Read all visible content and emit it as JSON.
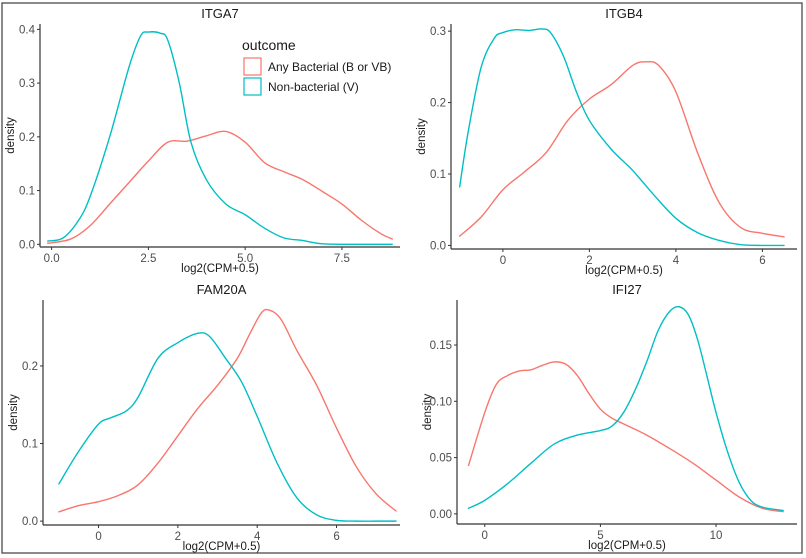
{
  "colors": {
    "bacterial": "#F8766D",
    "nonbacterial": "#00BFC4"
  },
  "legend": {
    "title": "outcome",
    "items": [
      {
        "label": "Any Bacterial (B or VB)",
        "series": "bacterial"
      },
      {
        "label": "Non-bacterial (V)",
        "series": "nonbacterial"
      }
    ]
  },
  "chart_data": [
    {
      "type": "line",
      "title": "ITGA7",
      "xlabel": "log2(CPM+0.5)",
      "ylabel": "density",
      "xlim": [
        -0.3,
        9.0
      ],
      "ylim": [
        -0.005,
        0.41
      ],
      "xticks": [
        0.0,
        2.5,
        5.0,
        7.5
      ],
      "xtick_labels": [
        "0.0",
        "2.5",
        "5.0",
        "7.5"
      ],
      "yticks": [
        0.0,
        0.1,
        0.2,
        0.3,
        0.4
      ],
      "ytick_labels": [
        "0.0",
        "0.1",
        "0.2",
        "0.3",
        "0.4"
      ],
      "grid": false,
      "legend_position": "top-right",
      "series": [
        {
          "name": "Any Bacterial (B or VB)",
          "key": "bacterial",
          "x": [
            -0.1,
            0.5,
            1.0,
            1.5,
            2.0,
            2.5,
            3.0,
            3.5,
            4.0,
            4.5,
            5.0,
            5.5,
            6.0,
            6.5,
            7.0,
            7.5,
            8.0,
            8.5,
            8.8
          ],
          "y": [
            0.002,
            0.01,
            0.035,
            0.075,
            0.115,
            0.155,
            0.19,
            0.192,
            0.202,
            0.21,
            0.19,
            0.152,
            0.135,
            0.12,
            0.098,
            0.075,
            0.045,
            0.02,
            0.01
          ]
        },
        {
          "name": "Non-bacterial (V)",
          "key": "nonbacterial",
          "x": [
            -0.1,
            0.3,
            0.7,
            1.0,
            1.5,
            2.0,
            2.3,
            2.5,
            2.8,
            3.0,
            3.3,
            3.6,
            4.0,
            4.5,
            5.0,
            5.5,
            6.0,
            6.5,
            7.0,
            8.0,
            8.8
          ],
          "y": [
            0.006,
            0.012,
            0.045,
            0.09,
            0.2,
            0.33,
            0.388,
            0.395,
            0.393,
            0.38,
            0.3,
            0.19,
            0.12,
            0.075,
            0.055,
            0.03,
            0.012,
            0.007,
            0.001,
            0.0,
            0.0
          ]
        }
      ]
    },
    {
      "type": "line",
      "title": "ITGB4",
      "xlabel": "log2(CPM+0.5)",
      "ylabel": "density",
      "xlim": [
        -1.2,
        6.8
      ],
      "ylim": [
        -0.005,
        0.31
      ],
      "xticks": [
        0,
        2,
        4,
        6
      ],
      "xtick_labels": [
        "0",
        "2",
        "4",
        "6"
      ],
      "yticks": [
        0.0,
        0.1,
        0.2,
        0.3
      ],
      "ytick_labels": [
        "0.0",
        "0.1",
        "0.2",
        "0.3"
      ],
      "grid": false,
      "series": [
        {
          "name": "Any Bacterial (B or VB)",
          "key": "bacterial",
          "x": [
            -1.0,
            -0.5,
            0.0,
            0.5,
            1.0,
            1.5,
            2.0,
            2.5,
            3.0,
            3.3,
            3.6,
            4.0,
            4.5,
            5.0,
            5.5,
            6.0,
            6.5
          ],
          "y": [
            0.013,
            0.04,
            0.078,
            0.103,
            0.13,
            0.175,
            0.205,
            0.225,
            0.252,
            0.257,
            0.252,
            0.215,
            0.13,
            0.06,
            0.025,
            0.017,
            0.012
          ]
        },
        {
          "name": "Non-bacterial (V)",
          "key": "nonbacterial",
          "x": [
            -1.0,
            -0.8,
            -0.5,
            -0.2,
            0.0,
            0.3,
            0.6,
            0.9,
            1.1,
            1.4,
            1.7,
            2.0,
            2.5,
            3.0,
            3.5,
            4.0,
            4.5,
            5.0,
            5.5,
            6.0,
            6.5
          ],
          "y": [
            0.082,
            0.16,
            0.25,
            0.29,
            0.298,
            0.302,
            0.301,
            0.303,
            0.298,
            0.265,
            0.215,
            0.175,
            0.135,
            0.105,
            0.07,
            0.038,
            0.018,
            0.007,
            0.001,
            0.0,
            0.0
          ]
        }
      ]
    },
    {
      "type": "line",
      "title": "FAM20A",
      "xlabel": "log2(CPM+0.5)",
      "ylabel": "density",
      "xlim": [
        -1.4,
        7.6
      ],
      "ylim": [
        -0.005,
        0.285
      ],
      "xticks": [
        0,
        2,
        4,
        6
      ],
      "xtick_labels": [
        "0",
        "2",
        "4",
        "6"
      ],
      "yticks": [
        0.0,
        0.1,
        0.2
      ],
      "ytick_labels": [
        "0.0",
        "0.1",
        "0.2"
      ],
      "grid": false,
      "series": [
        {
          "name": "Any Bacterial (B or VB)",
          "key": "bacterial",
          "x": [
            -1.0,
            -0.5,
            0.0,
            0.5,
            1.0,
            1.5,
            2.0,
            2.5,
            3.0,
            3.5,
            3.8,
            4.1,
            4.3,
            4.6,
            5.0,
            5.5,
            6.0,
            6.5,
            7.0,
            7.5
          ],
          "y": [
            0.012,
            0.02,
            0.025,
            0.033,
            0.047,
            0.075,
            0.11,
            0.145,
            0.175,
            0.21,
            0.24,
            0.268,
            0.272,
            0.26,
            0.22,
            0.175,
            0.12,
            0.07,
            0.035,
            0.013
          ]
        },
        {
          "name": "Non-bacterial (V)",
          "key": "nonbacterial",
          "x": [
            -1.0,
            -0.5,
            0.0,
            0.3,
            0.7,
            1.0,
            1.5,
            2.0,
            2.5,
            2.8,
            3.2,
            3.6,
            4.0,
            4.5,
            5.0,
            5.5,
            6.0,
            6.5,
            7.0,
            7.5
          ],
          "y": [
            0.048,
            0.09,
            0.125,
            0.133,
            0.142,
            0.16,
            0.21,
            0.23,
            0.242,
            0.238,
            0.21,
            0.18,
            0.135,
            0.075,
            0.03,
            0.008,
            0.001,
            0.0,
            0.0,
            0.0
          ]
        }
      ]
    },
    {
      "type": "line",
      "title": "IFI27",
      "xlabel": "log2(CPM+0.5)",
      "ylabel": "density",
      "xlim": [
        -1.2,
        13.5
      ],
      "ylim": [
        -0.009,
        0.19
      ],
      "xticks": [
        0,
        5,
        10
      ],
      "xtick_labels": [
        "0",
        "5",
        "10"
      ],
      "yticks": [
        0.0,
        0.05,
        0.1,
        0.15
      ],
      "ytick_labels": [
        "0.00",
        "0.05",
        "0.10",
        "0.15"
      ],
      "grid": false,
      "series": [
        {
          "name": "Any Bacterial (B or VB)",
          "key": "bacterial",
          "x": [
            -0.7,
            0.0,
            0.5,
            1.0,
            1.5,
            2.0,
            2.5,
            3.0,
            3.5,
            4.0,
            4.5,
            5.0,
            5.5,
            6.0,
            7.0,
            8.0,
            9.0,
            10.0,
            11.0,
            12.0,
            12.9
          ],
          "y": [
            0.043,
            0.09,
            0.115,
            0.123,
            0.127,
            0.128,
            0.132,
            0.135,
            0.133,
            0.123,
            0.107,
            0.093,
            0.085,
            0.08,
            0.07,
            0.058,
            0.045,
            0.03,
            0.015,
            0.005,
            0.002
          ]
        },
        {
          "name": "Non-bacterial (V)",
          "key": "nonbacterial",
          "x": [
            -0.7,
            0.0,
            1.0,
            2.0,
            3.0,
            4.0,
            5.0,
            5.5,
            6.0,
            6.5,
            7.0,
            7.5,
            8.0,
            8.4,
            8.8,
            9.2,
            9.6,
            10.0,
            10.5,
            11.0,
            11.5,
            12.0,
            12.9
          ],
          "y": [
            0.005,
            0.012,
            0.027,
            0.045,
            0.062,
            0.07,
            0.074,
            0.078,
            0.09,
            0.11,
            0.135,
            0.163,
            0.18,
            0.184,
            0.177,
            0.155,
            0.123,
            0.09,
            0.055,
            0.028,
            0.012,
            0.006,
            0.003
          ]
        }
      ]
    }
  ]
}
